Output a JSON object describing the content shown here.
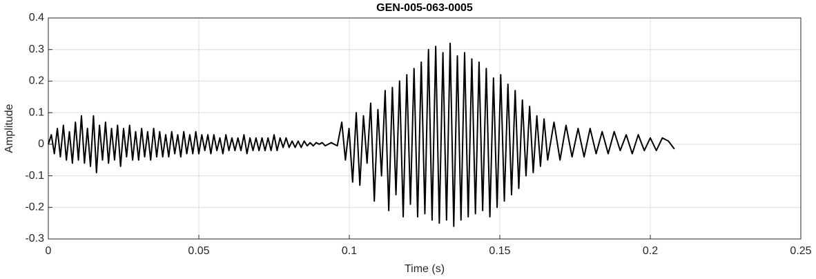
{
  "chart_data": {
    "type": "line",
    "title": "GEN-005-063-0005",
    "xlabel": "Time (s)",
    "ylabel": "Amplitude",
    "color": "#000000",
    "grid": true,
    "xlim": [
      0,
      0.25
    ],
    "xticks": [
      0,
      0.05,
      0.1,
      0.15,
      0.2,
      0.25
    ],
    "ylim": [
      -0.3,
      0.4
    ],
    "yticks": [
      -0.3,
      -0.2,
      -0.1,
      0,
      0.1,
      0.2,
      0.3,
      0.4
    ],
    "x": [
      0,
      0.001,
      0.002,
      0.003,
      0.004,
      0.005,
      0.006,
      0.007,
      0.008,
      0.009,
      0.01,
      0.011,
      0.012,
      0.013,
      0.014,
      0.015,
      0.016,
      0.017,
      0.018,
      0.019,
      0.02,
      0.021,
      0.022,
      0.023,
      0.024,
      0.025,
      0.026,
      0.027,
      0.028,
      0.029,
      0.03,
      0.031,
      0.032,
      0.033,
      0.034,
      0.035,
      0.036,
      0.037,
      0.038,
      0.039,
      0.04,
      0.041,
      0.042,
      0.043,
      0.044,
      0.045,
      0.046,
      0.047,
      0.048,
      0.049,
      0.05,
      0.051,
      0.052,
      0.053,
      0.054,
      0.055,
      0.056,
      0.057,
      0.058,
      0.059,
      0.06,
      0.061,
      0.062,
      0.063,
      0.064,
      0.065,
      0.066,
      0.067,
      0.068,
      0.069,
      0.07,
      0.071,
      0.072,
      0.073,
      0.074,
      0.075,
      0.076,
      0.077,
      0.078,
      0.079,
      0.08,
      0.081,
      0.082,
      0.083,
      0.084,
      0.085,
      0.086,
      0.087,
      0.088,
      0.089,
      0.09,
      0.091,
      0.092,
      0.093,
      0.094,
      0.095,
      0.096,
      0.0975,
      0.0987,
      0.0999,
      0.1011,
      0.1023,
      0.1035,
      0.1047,
      0.1059,
      0.1071,
      0.1083,
      0.1095,
      0.1107,
      0.1119,
      0.1131,
      0.1143,
      0.1155,
      0.1167,
      0.1179,
      0.1191,
      0.1203,
      0.1215,
      0.1227,
      0.1239,
      0.1251,
      0.1263,
      0.1275,
      0.1287,
      0.1299,
      0.1311,
      0.1323,
      0.1335,
      0.1347,
      0.1359,
      0.1371,
      0.1383,
      0.1395,
      0.1407,
      0.1419,
      0.1431,
      0.1443,
      0.1455,
      0.1467,
      0.1479,
      0.1491,
      0.1503,
      0.1515,
      0.1527,
      0.1539,
      0.1551,
      0.1563,
      0.1575,
      0.1587,
      0.1599,
      0.1611,
      0.1623,
      0.1635,
      0.1647,
      0.1659,
      0.168,
      0.17,
      0.172,
      0.174,
      0.176,
      0.178,
      0.18,
      0.182,
      0.184,
      0.186,
      0.188,
      0.19,
      0.192,
      0.194,
      0.196,
      0.198,
      0.2,
      0.202,
      0.204,
      0.206,
      0.208
    ],
    "values": [
      0,
      0.03,
      -0.03,
      0.05,
      -0.04,
      0.06,
      -0.05,
      0.04,
      -0.06,
      0.07,
      -0.05,
      0.09,
      -0.06,
      0.05,
      -0.07,
      0.09,
      -0.09,
      0.06,
      -0.05,
      0.07,
      -0.06,
      0.05,
      -0.05,
      0.06,
      -0.07,
      0.05,
      -0.04,
      0.06,
      -0.05,
      0.04,
      -0.05,
      0.05,
      -0.04,
      0.04,
      -0.05,
      0.05,
      -0.04,
      0.04,
      -0.04,
      0.03,
      -0.04,
      0.04,
      -0.03,
      0.03,
      -0.04,
      0.04,
      -0.03,
      0.03,
      -0.03,
      0.04,
      -0.03,
      0.03,
      -0.02,
      0.03,
      -0.03,
      0.03,
      -0.02,
      0.02,
      -0.03,
      0.03,
      -0.02,
      0.02,
      -0.02,
      0.02,
      -0.02,
      0.03,
      -0.03,
      0.02,
      -0.02,
      0.02,
      -0.02,
      0.02,
      -0.02,
      0.02,
      -0.02,
      0.03,
      -0.02,
      0.02,
      -0.01,
      0.02,
      -0.01,
      0.01,
      -0.01,
      0.01,
      -0.01,
      0.01,
      -0.005,
      0.005,
      -0.005,
      0.005,
      0,
      0.005,
      -0.005,
      0,
      0.005,
      0,
      -0.005,
      0.07,
      -0.05,
      0.05,
      -0.12,
      0.1,
      -0.13,
      0.09,
      -0.06,
      0.13,
      -0.18,
      0.11,
      -0.1,
      0.17,
      -0.21,
      0.18,
      -0.16,
      0.2,
      -0.23,
      0.22,
      -0.19,
      0.24,
      -0.23,
      0.26,
      -0.22,
      0.3,
      -0.24,
      0.31,
      -0.25,
      0.29,
      -0.24,
      0.32,
      -0.26,
      0.28,
      -0.24,
      0.29,
      -0.23,
      0.27,
      -0.22,
      0.26,
      -0.21,
      0.24,
      -0.23,
      0.21,
      -0.2,
      0.22,
      -0.18,
      0.19,
      -0.16,
      0.17,
      -0.14,
      0.14,
      -0.1,
      0.12,
      -0.09,
      0.09,
      -0.07,
      0.08,
      -0.05,
      0.07,
      -0.05,
      0.06,
      -0.04,
      0.05,
      -0.04,
      0.05,
      -0.03,
      0.04,
      -0.03,
      0.04,
      -0.02,
      0.03,
      -0.03,
      0.03,
      -0.02,
      0.02,
      -0.02,
      0.02,
      0.01,
      -0.015
    ]
  }
}
